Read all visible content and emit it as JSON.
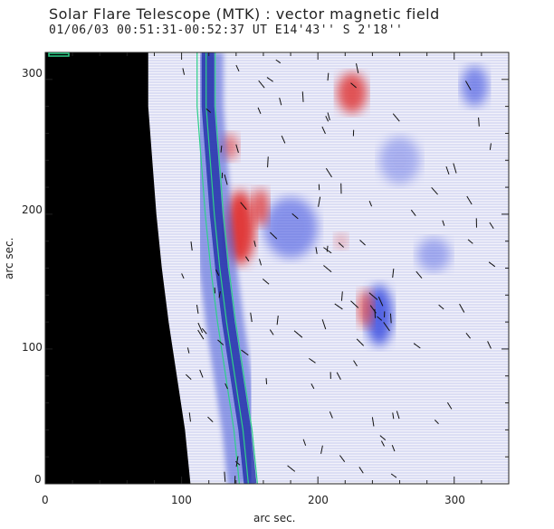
{
  "header": {
    "title": "Solar Flare Telescope (MTK) : vector magnetic field",
    "subtitle": "01/06/03   00:51:31-00:52:37 UT     E14'43''  S 2'18''"
  },
  "axes": {
    "xlabel": "arc sec.",
    "ylabel": "arc sec.",
    "xticks": [
      "0",
      "100",
      "200",
      "300"
    ],
    "yticks": [
      "0",
      "100",
      "200",
      "300"
    ]
  },
  "chart_data": {
    "type": "heatmap",
    "title": "Solar Flare Telescope (MTK) : vector magnetic field",
    "xlabel": "arc sec.",
    "ylabel": "arc sec.",
    "xlim": [
      0,
      340
    ],
    "ylim": [
      0,
      320
    ],
    "colors": {
      "positive": "#e03a3a",
      "negative": "#3a4ee0",
      "background": "#000000",
      "contour": "#2fd08a"
    },
    "limb_x": [
      122,
      122,
      125,
      128,
      132,
      137,
      143,
      149,
      153
    ],
    "limb_y": [
      320,
      280,
      240,
      200,
      160,
      120,
      80,
      40,
      0
    ],
    "positive_patches": [
      {
        "x": 143,
        "y": 190,
        "w": 22,
        "h": 55,
        "strength": 1.0
      },
      {
        "x": 158,
        "y": 205,
        "w": 12,
        "h": 28,
        "strength": 0.85
      },
      {
        "x": 135,
        "y": 250,
        "w": 14,
        "h": 20,
        "strength": 0.6
      },
      {
        "x": 225,
        "y": 290,
        "w": 22,
        "h": 30,
        "strength": 0.85
      },
      {
        "x": 235,
        "y": 130,
        "w": 12,
        "h": 28,
        "strength": 0.7
      },
      {
        "x": 217,
        "y": 180,
        "w": 10,
        "h": 12,
        "strength": 0.35
      }
    ],
    "negative_patches": [
      {
        "x": 245,
        "y": 125,
        "w": 20,
        "h": 45,
        "strength": 0.85
      },
      {
        "x": 180,
        "y": 190,
        "w": 40,
        "h": 45,
        "strength": 0.55
      },
      {
        "x": 315,
        "y": 295,
        "w": 20,
        "h": 30,
        "strength": 0.6
      },
      {
        "x": 285,
        "y": 170,
        "w": 25,
        "h": 25,
        "strength": 0.4
      },
      {
        "x": 260,
        "y": 240,
        "w": 30,
        "h": 35,
        "strength": 0.35
      }
    ]
  }
}
